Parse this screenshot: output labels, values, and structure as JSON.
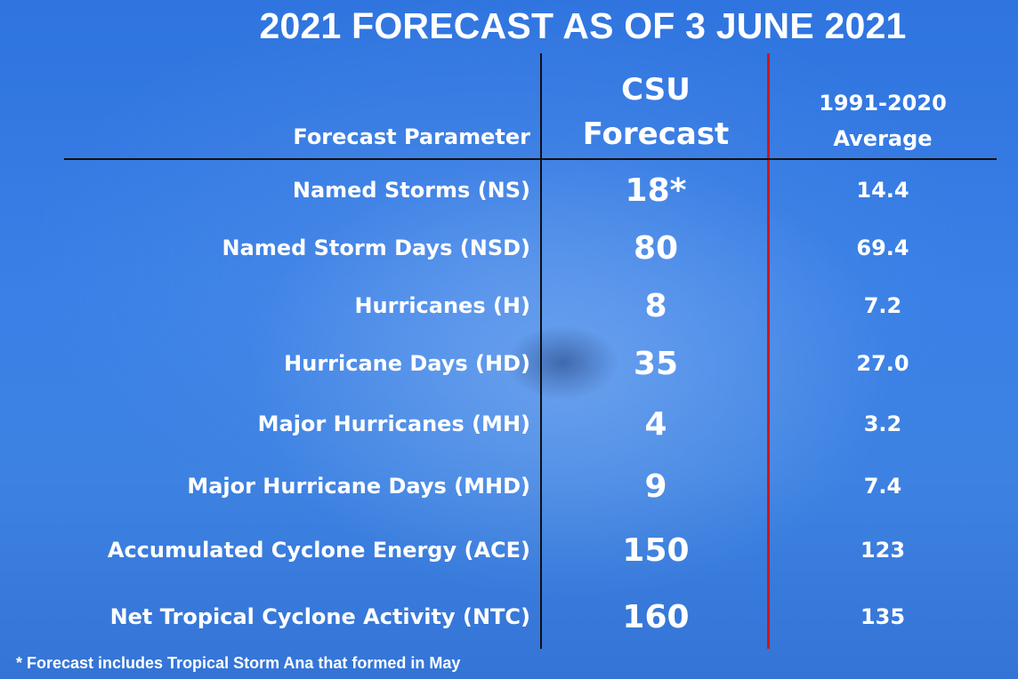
{
  "title": "2021 FORECAST AS OF 3 JUNE 2021",
  "chart_data": {
    "type": "table",
    "columns": [
      "Forecast Parameter",
      "CSU Forecast",
      "1991-2020 Average"
    ],
    "header": {
      "param": "Forecast Parameter",
      "csu_line1": "CSU",
      "csu_line2": "Forecast",
      "avg_line1": "1991-2020",
      "avg_line2": "Average"
    },
    "rows": [
      {
        "param": "Named Storms (NS)",
        "csu": "18*",
        "avg": "14.4"
      },
      {
        "param": "Named Storm Days (NSD)",
        "csu": "80",
        "avg": "69.4"
      },
      {
        "param": "Hurricanes (H)",
        "csu": "8",
        "avg": "7.2"
      },
      {
        "param": "Hurricane Days (HD)",
        "csu": "35",
        "avg": "27.0"
      },
      {
        "param": "Major Hurricanes (MH)",
        "csu": "4",
        "avg": "3.2"
      },
      {
        "param": "Major Hurricane Days (MHD)",
        "csu": "9",
        "avg": "7.4"
      },
      {
        "param": "Accumulated Cyclone Energy (ACE)",
        "csu": "150",
        "avg": "123"
      },
      {
        "param": "Net Tropical Cyclone Activity (NTC)",
        "csu": "160",
        "avg": "135"
      }
    ]
  },
  "footnote": "* Forecast includes Tropical Storm Ana that formed in May",
  "colors": {
    "background": "#3a80e6",
    "text": "#ffffff",
    "grid_line": "#101010",
    "divider_red": "#d01616"
  }
}
